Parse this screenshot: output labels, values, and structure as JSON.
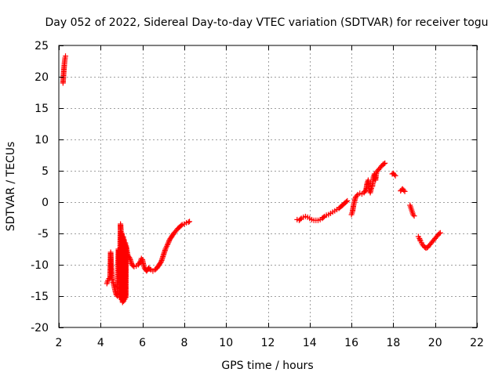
{
  "chart_data": {
    "type": "scatter",
    "title": "Day 052 of 2022, Sidereal Day-to-day VTEC variation (SDTVAR) for receiver togu",
    "xlabel": "GPS time / hours",
    "ylabel": "SDTVAR / TECUs",
    "xlim": [
      2,
      22
    ],
    "ylim": [
      -20,
      25
    ],
    "xticks": [
      2,
      4,
      6,
      8,
      10,
      12,
      14,
      16,
      18,
      20,
      22
    ],
    "yticks": [
      -20,
      -15,
      -10,
      -5,
      0,
      5,
      10,
      15,
      20,
      25
    ],
    "grid": true,
    "marker": "+",
    "color": "#ff0000",
    "series": [
      {
        "name": "SDTVAR",
        "segments": [
          [
            [
              2.2,
              19.0
            ],
            [
              2.22,
              20.0
            ],
            [
              2.24,
              21.0
            ],
            [
              2.26,
              21.8
            ],
            [
              2.28,
              22.5
            ],
            [
              2.3,
              23.0
            ],
            [
              2.32,
              23.3
            ]
          ],
          [
            [
              4.3,
              -13.0
            ],
            [
              4.35,
              -12.5
            ],
            [
              4.4,
              -12.2
            ],
            [
              4.45,
              -12.0
            ],
            [
              4.48,
              -8.0
            ],
            [
              4.52,
              -10.5
            ],
            [
              4.55,
              -12.5
            ],
            [
              4.6,
              -12.8
            ],
            [
              4.65,
              -13.5
            ],
            [
              4.7,
              -14.2
            ],
            [
              4.75,
              -14.8
            ],
            [
              4.8,
              -15.0
            ],
            [
              4.85,
              -7.5
            ],
            [
              4.88,
              -7.8
            ],
            [
              4.9,
              -15.2
            ],
            [
              4.95,
              -3.5
            ],
            [
              4.97,
              -4.5
            ],
            [
              5.0,
              -15.5
            ],
            [
              5.02,
              -5.0
            ],
            [
              5.05,
              -16.0
            ],
            [
              5.08,
              -5.5
            ],
            [
              5.1,
              -15.8
            ],
            [
              5.12,
              -6.0
            ],
            [
              5.15,
              -15.5
            ],
            [
              5.18,
              -6.5
            ],
            [
              5.2,
              -15.2
            ],
            [
              5.22,
              -7.0
            ],
            [
              5.3,
              -8.5
            ],
            [
              5.4,
              -9.0
            ],
            [
              5.5,
              -10.0
            ],
            [
              5.6,
              -10.3
            ],
            [
              5.7,
              -10.2
            ],
            [
              5.8,
              -10.0
            ],
            [
              5.9,
              -9.5
            ],
            [
              5.95,
              -9.0
            ],
            [
              6.0,
              -9.2
            ],
            [
              6.05,
              -10.0
            ],
            [
              6.1,
              -10.5
            ],
            [
              6.2,
              -11.0
            ],
            [
              6.3,
              -10.5
            ],
            [
              6.4,
              -10.8
            ],
            [
              6.5,
              -11.0
            ],
            [
              6.6,
              -10.8
            ],
            [
              6.7,
              -10.5
            ],
            [
              6.8,
              -10.0
            ],
            [
              6.9,
              -9.5
            ],
            [
              7.0,
              -8.5
            ],
            [
              7.1,
              -7.5
            ],
            [
              7.2,
              -6.8
            ],
            [
              7.3,
              -6.0
            ],
            [
              7.4,
              -5.5
            ],
            [
              7.5,
              -5.0
            ],
            [
              7.6,
              -4.6
            ],
            [
              7.7,
              -4.2
            ],
            [
              7.8,
              -3.9
            ],
            [
              7.9,
              -3.6
            ],
            [
              8.0,
              -3.5
            ],
            [
              8.1,
              -3.3
            ],
            [
              8.2,
              -3.2
            ],
            [
              8.25,
              -3.1
            ]
          ],
          [
            [
              13.4,
              -2.8
            ],
            [
              13.5,
              -2.9
            ],
            [
              13.6,
              -2.6
            ],
            [
              13.7,
              -2.4
            ],
            [
              13.8,
              -2.3
            ],
            [
              13.9,
              -2.4
            ],
            [
              14.0,
              -2.6
            ],
            [
              14.1,
              -2.8
            ],
            [
              14.2,
              -2.9
            ],
            [
              14.3,
              -2.9
            ],
            [
              14.4,
              -2.9
            ],
            [
              14.5,
              -2.8
            ],
            [
              14.6,
              -2.6
            ],
            [
              14.7,
              -2.3
            ],
            [
              14.8,
              -2.1
            ],
            [
              14.9,
              -2.0
            ],
            [
              15.0,
              -1.8
            ],
            [
              15.1,
              -1.6
            ],
            [
              15.2,
              -1.4
            ],
            [
              15.3,
              -1.2
            ],
            [
              15.4,
              -1.0
            ],
            [
              15.5,
              -0.7
            ],
            [
              15.6,
              -0.4
            ],
            [
              15.7,
              -0.1
            ],
            [
              15.8,
              0.2
            ]
          ],
          [
            [
              16.0,
              -2.0
            ],
            [
              16.05,
              -1.5
            ],
            [
              16.1,
              -0.5
            ],
            [
              16.15,
              0.2
            ],
            [
              16.2,
              0.8
            ],
            [
              16.3,
              1.2
            ],
            [
              16.4,
              1.4
            ],
            [
              16.5,
              1.3
            ],
            [
              16.6,
              1.5
            ],
            [
              16.7,
              2.0
            ],
            [
              16.75,
              3.0
            ],
            [
              16.8,
              3.5
            ],
            [
              16.85,
              2.0
            ],
            [
              16.9,
              1.5
            ],
            [
              16.95,
              2.2
            ],
            [
              17.0,
              2.5
            ],
            [
              17.05,
              4.0
            ],
            [
              17.1,
              4.5
            ],
            [
              17.15,
              3.5
            ],
            [
              17.2,
              4.8
            ],
            [
              17.25,
              5.0
            ],
            [
              17.3,
              5.2
            ],
            [
              17.35,
              5.4
            ],
            [
              17.4,
              5.6
            ],
            [
              17.45,
              5.8
            ],
            [
              17.5,
              6.0
            ],
            [
              17.55,
              6.1
            ],
            [
              17.6,
              6.2
            ]
          ],
          [
            [
              17.95,
              4.5
            ],
            [
              18.0,
              4.6
            ],
            [
              18.05,
              4.4
            ],
            [
              18.1,
              4.2
            ]
          ],
          [
            [
              18.35,
              1.8
            ],
            [
              18.4,
              2.0
            ],
            [
              18.45,
              2.1
            ],
            [
              18.5,
              1.9
            ],
            [
              18.55,
              1.7
            ]
          ],
          [
            [
              18.8,
              -0.5
            ],
            [
              18.85,
              -1.0
            ],
            [
              18.9,
              -1.5
            ],
            [
              18.95,
              -2.0
            ],
            [
              19.0,
              -2.2
            ]
          ],
          [
            [
              19.2,
              -5.5
            ],
            [
              19.25,
              -5.8
            ],
            [
              19.3,
              -6.2
            ],
            [
              19.35,
              -6.5
            ],
            [
              19.4,
              -6.8
            ],
            [
              19.45,
              -7.0
            ],
            [
              19.5,
              -7.2
            ],
            [
              19.55,
              -7.3
            ],
            [
              19.6,
              -7.3
            ],
            [
              19.65,
              -7.2
            ],
            [
              19.7,
              -7.0
            ],
            [
              19.75,
              -6.8
            ],
            [
              19.8,
              -6.6
            ],
            [
              19.85,
              -6.4
            ],
            [
              19.9,
              -6.2
            ],
            [
              19.95,
              -6.0
            ],
            [
              20.0,
              -5.8
            ],
            [
              20.05,
              -5.6
            ],
            [
              20.1,
              -5.4
            ],
            [
              20.15,
              -5.2
            ],
            [
              20.2,
              -5.0
            ],
            [
              20.25,
              -4.9
            ]
          ]
        ]
      }
    ]
  }
}
